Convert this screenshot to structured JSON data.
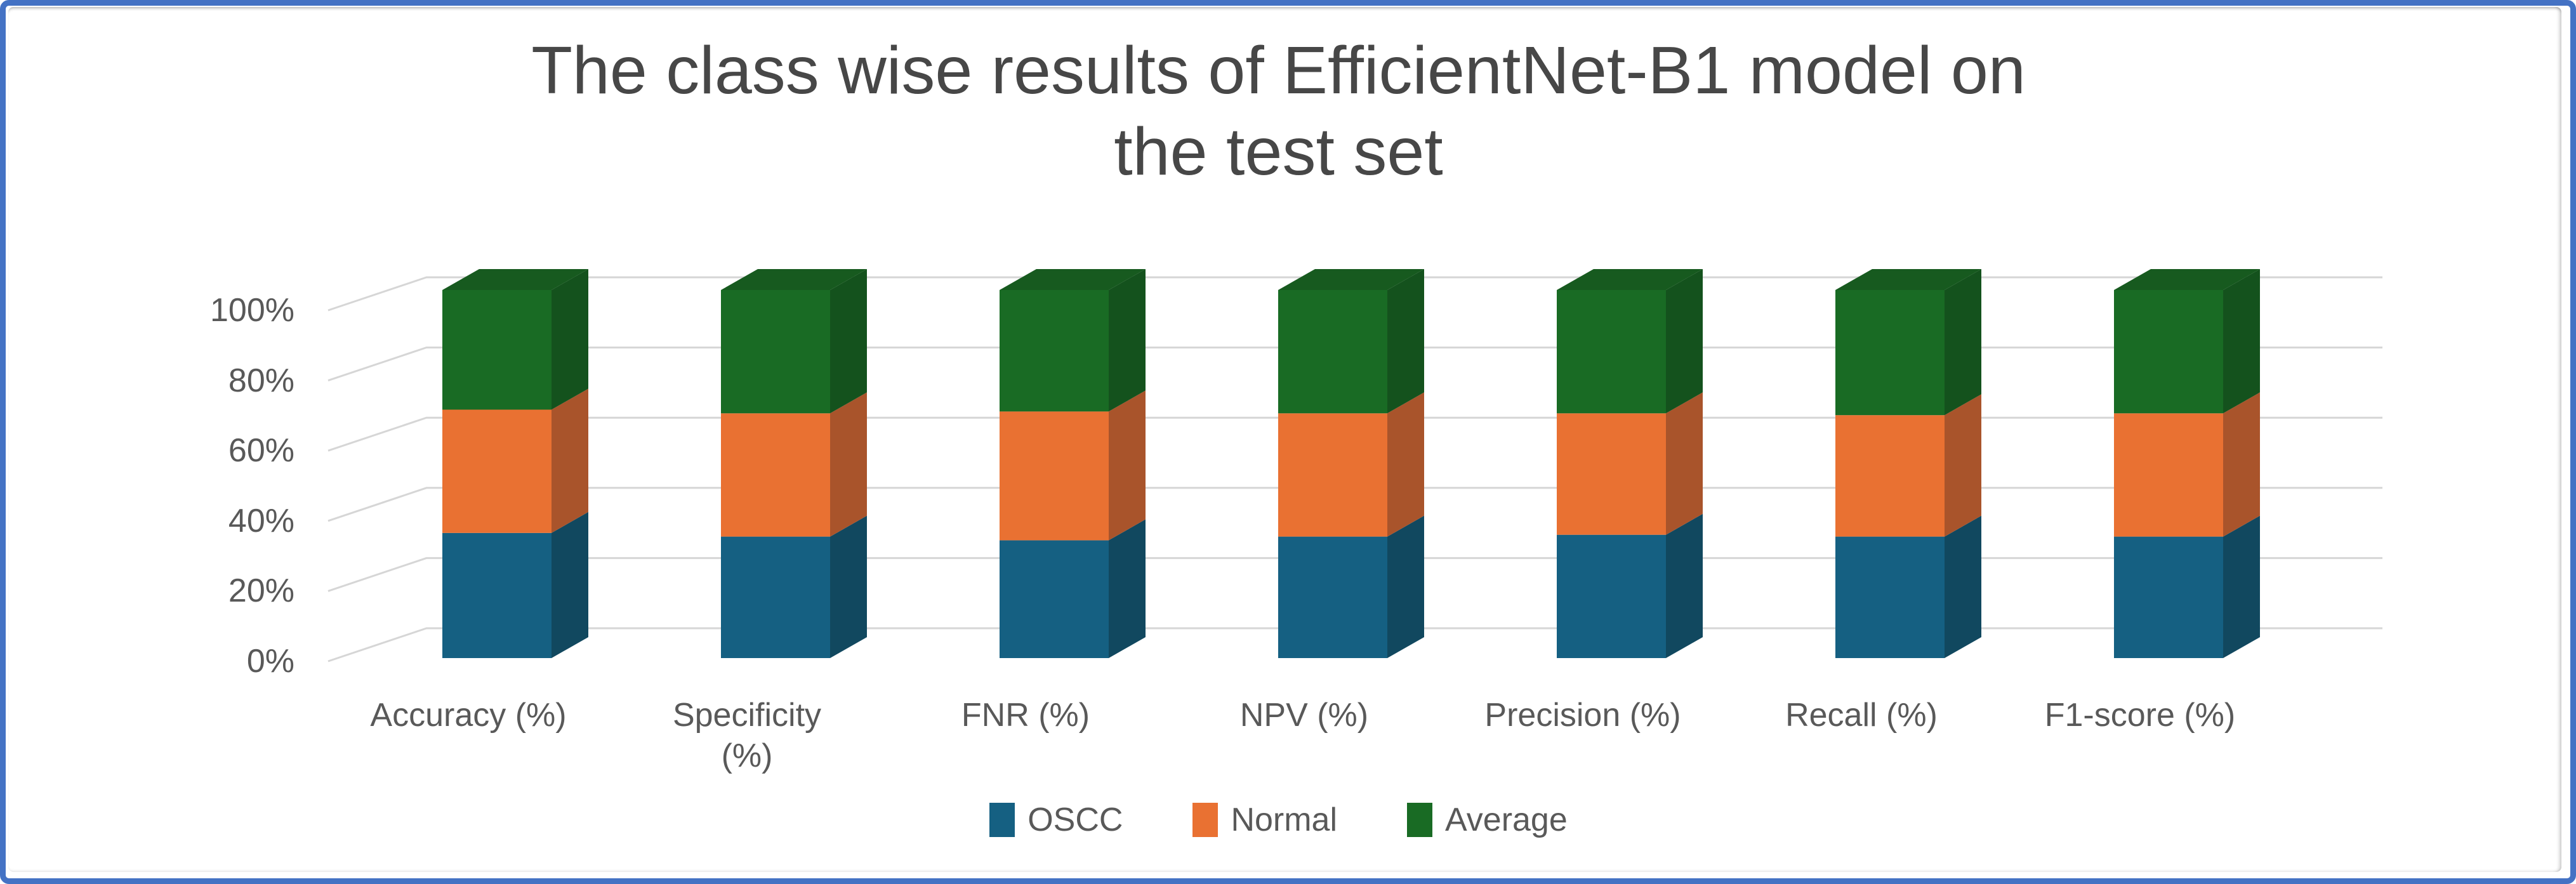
{
  "figure": {
    "border_color": "#4472C4",
    "background_color": "#FFFFFF"
  },
  "chart_data": {
    "type": "bar",
    "subtype": "3d-100-percent-stacked-column",
    "title": "The class wise results of EfficientNet-B1 model on the test set",
    "title_lines": [
      "The class wise results of EfficientNet-B1 model on",
      "the test set"
    ],
    "xlabel": "",
    "ylabel": "",
    "ylim": [
      0,
      100
    ],
    "yticks": [
      "0%",
      "20%",
      "40%",
      "60%",
      "80%",
      "100%"
    ],
    "ytick_values": [
      0,
      20,
      40,
      60,
      80,
      100
    ],
    "gridlines": true,
    "legend_position": "bottom",
    "categories": [
      "Accuracy (%)",
      "Specificity (%)",
      "FNR (%)",
      "NPV (%)",
      "Precision (%)",
      "Recall (%)",
      "F1-score (%)"
    ],
    "category_label_lines": [
      [
        "Accuracy (%)"
      ],
      [
        "Specificity",
        "(%)"
      ],
      [
        "FNR (%)"
      ],
      [
        "NPV (%)"
      ],
      [
        "Precision (%)"
      ],
      [
        "Recall (%)"
      ],
      [
        "F1-score (%)"
      ]
    ],
    "units": "percent share of 100% stacked column",
    "series": [
      {
        "name": "OSCC",
        "color": "#156082",
        "side_color": "#11485F",
        "top_color": "#0E3E53",
        "values": [
          34,
          33,
          32,
          33,
          33.5,
          33,
          33
        ]
      },
      {
        "name": "Normal",
        "color": "#E97132",
        "side_color": "#A9542B",
        "top_color": "#8F4722",
        "values": [
          33.5,
          33.5,
          35,
          33.5,
          33,
          33,
          33.5
        ]
      },
      {
        "name": "Average",
        "color": "#196B24",
        "side_color": "#14521D",
        "top_color": "#175A1F",
        "values": [
          32.5,
          33.5,
          33,
          33.5,
          33.5,
          34,
          33.5
        ]
      }
    ],
    "colors": {
      "gridline": "#D6D6D6",
      "axis_text": "#595959",
      "title_text": "#474747"
    }
  }
}
